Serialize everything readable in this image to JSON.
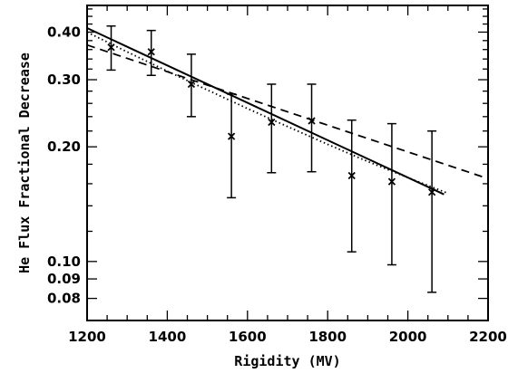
{
  "chart_data": {
    "type": "scatter",
    "title": "",
    "xlabel": "Rigidity (MV)",
    "ylabel": "He Flux Fractional Decrease",
    "xlim": [
      1200,
      2200
    ],
    "ylim": [
      0.07,
      0.47
    ],
    "yscale": "log",
    "grid": false,
    "legend": "none",
    "x_ticks": [
      1200,
      1400,
      1600,
      1800,
      2000,
      2200
    ],
    "y_ticks": [
      0.08,
      0.09,
      0.1,
      0.2,
      0.3,
      0.4
    ],
    "x_tick_labels": [
      "1200",
      "1400",
      "1600",
      "1800",
      "2000",
      "2200"
    ],
    "y_tick_labels": [
      "0.08",
      "0.09",
      "0.10",
      "0.20",
      "0.30",
      "0.40"
    ],
    "series": [
      {
        "kind": "points-with-error-bars",
        "marker": "x",
        "x": [
          1260,
          1360,
          1460,
          1560,
          1660,
          1760,
          1860,
          1960,
          2060
        ],
        "y": [
          0.365,
          0.355,
          0.292,
          0.213,
          0.232,
          0.234,
          0.168,
          0.162,
          0.152
        ],
        "y_err_low": [
          0.318,
          0.308,
          0.24,
          0.147,
          0.171,
          0.172,
          0.106,
          0.098,
          0.083
        ],
        "y_err_high": [
          0.415,
          0.404,
          0.35,
          0.275,
          0.292,
          0.292,
          0.235,
          0.23,
          0.22
        ]
      },
      {
        "kind": "line",
        "style": "solid",
        "x": [
          1200,
          2090
        ],
        "y": [
          0.41,
          0.15
        ]
      },
      {
        "kind": "line",
        "style": "dotted",
        "x": [
          1200,
          1300,
          1400,
          1500,
          1600,
          1700,
          1800,
          1900,
          2000,
          2100
        ],
        "y": [
          0.4,
          0.355,
          0.316,
          0.282,
          0.252,
          0.226,
          0.203,
          0.183,
          0.166,
          0.151
        ]
      },
      {
        "kind": "line",
        "style": "dashed",
        "x": [
          1200,
          2200
        ],
        "y": [
          0.37,
          0.165
        ]
      }
    ]
  }
}
